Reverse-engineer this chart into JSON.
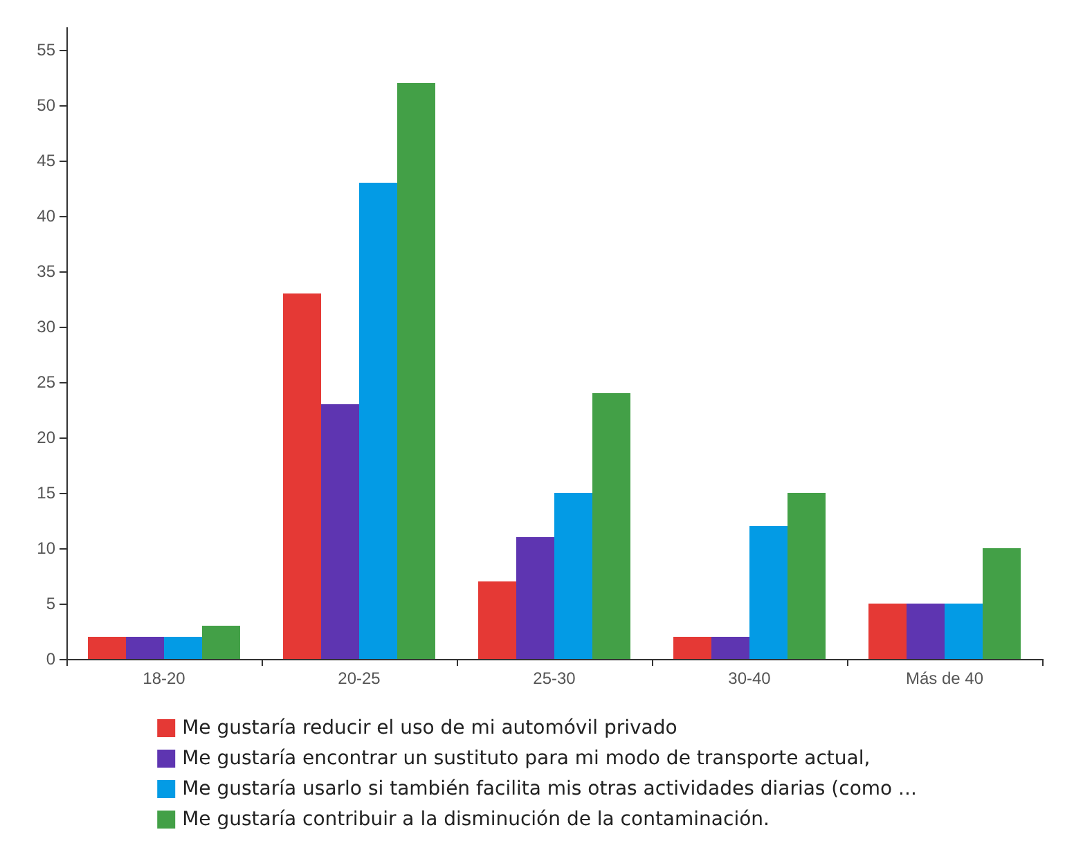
{
  "chart_data": {
    "type": "bar",
    "categories": [
      "18-20",
      "20-25",
      "25-30",
      "30-40",
      "Más de 40"
    ],
    "series": [
      {
        "name": "Me gustaría reducir el uso de mi automóvil privado",
        "color": "#e53935",
        "values": [
          2,
          33,
          7,
          2,
          5
        ]
      },
      {
        "name": "Me gustaría encontrar un sustituto para mi modo de transporte actual,",
        "color": "#5e35b1",
        "values": [
          2,
          23,
          11,
          2,
          5
        ]
      },
      {
        "name": "Me gustaría usarlo si también facilita mis otras actividades diarias (como ...",
        "color": "#039be5",
        "values": [
          2,
          43,
          15,
          12,
          5
        ]
      },
      {
        "name": "Me gustaría contribuir a la disminución de la contaminación.",
        "color": "#43a047",
        "values": [
          3,
          52,
          24,
          15,
          10
        ]
      }
    ],
    "ylim": [
      0,
      57
    ],
    "yticks": [
      0,
      5,
      10,
      15,
      20,
      25,
      30,
      35,
      40,
      45,
      50,
      55
    ],
    "grid": false,
    "legend": "bottom"
  }
}
